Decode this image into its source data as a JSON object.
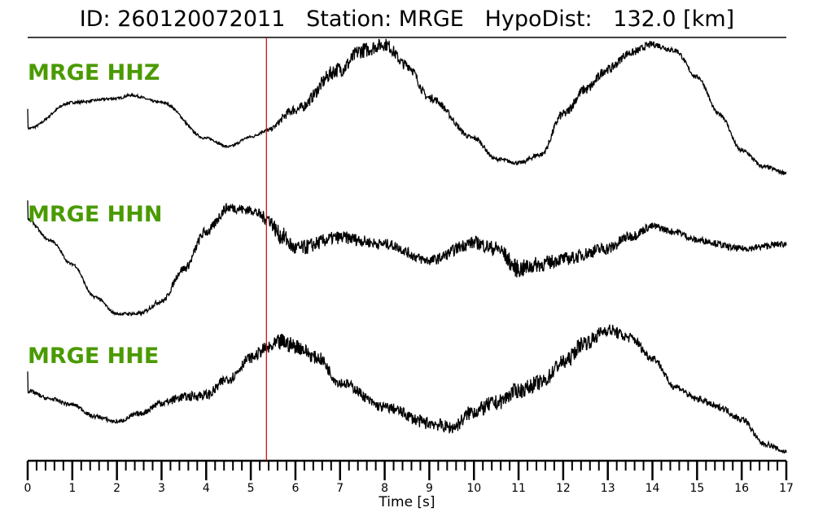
{
  "chart_data": {
    "type": "line",
    "title": "ID: 260120072011   Station: MRGE   HypoDist:   132.0 [km]",
    "xlabel": "Time [s]",
    "xlim": [
      0,
      17
    ],
    "xticks": [
      "0",
      "1",
      "2",
      "3",
      "4",
      "5",
      "6",
      "7",
      "8",
      "9",
      "10",
      "11",
      "12",
      "13",
      "14",
      "15",
      "16",
      "17"
    ],
    "minor_tick_step": 0.2,
    "grid": false,
    "marker_line": {
      "x": 5.35,
      "color": "#cc0000"
    },
    "trace_color": "#000000",
    "label_color": "#4a9a00",
    "series": [
      {
        "name": "MRGE HHZ",
        "t": [
          0,
          1,
          2,
          2.3,
          3,
          4,
          4.5,
          5,
          5.35,
          6,
          7,
          7.5,
          8,
          8.5,
          9,
          10,
          10.5,
          11,
          11.5,
          12,
          12.5,
          13,
          13.5,
          14,
          14.5,
          15,
          15.5,
          16,
          16.5,
          17
        ],
        "amp": [
          -0.31,
          0.09,
          0.15,
          0.2,
          0.09,
          -0.46,
          -0.59,
          -0.44,
          -0.34,
          -0.02,
          0.6,
          0.89,
          0.98,
          0.66,
          0.16,
          -0.46,
          -0.78,
          -0.84,
          -0.71,
          -0.09,
          0.29,
          0.6,
          0.85,
          0.98,
          0.89,
          0.48,
          -0.09,
          -0.65,
          -0.9,
          -0.99
        ],
        "noise": [
          0.02,
          0.02,
          0.02,
          0.02,
          0.02,
          0.02,
          0.02,
          0.02,
          0.03,
          0.08,
          0.12,
          0.12,
          0.1,
          0.08,
          0.06,
          0.04,
          0.03,
          0.03,
          0.04,
          0.07,
          0.08,
          0.07,
          0.06,
          0.05,
          0.04,
          0.03,
          0.03,
          0.03,
          0.03,
          0.03
        ]
      },
      {
        "name": "MRGE HHN",
        "t": [
          0,
          0.5,
          1,
          1.5,
          2,
          2.5,
          3,
          3.5,
          4,
          4.5,
          5,
          5.35,
          5.7,
          6,
          7,
          8,
          9,
          10,
          10.5,
          11,
          11.5,
          12,
          13,
          13.5,
          14,
          14.5,
          15,
          16,
          17
        ],
        "amp": [
          0.56,
          0.25,
          -0.12,
          -0.62,
          -0.88,
          -0.88,
          -0.69,
          -0.19,
          0.38,
          0.75,
          0.71,
          0.59,
          0.31,
          0.12,
          0.29,
          0.19,
          -0.06,
          0.21,
          0.12,
          -0.19,
          -0.12,
          -0.04,
          0.12,
          0.31,
          0.46,
          0.38,
          0.25,
          0.12,
          0.19
        ],
        "noise": [
          0.02,
          0.02,
          0.02,
          0.02,
          0.02,
          0.03,
          0.04,
          0.06,
          0.08,
          0.08,
          0.07,
          0.1,
          0.14,
          0.12,
          0.1,
          0.08,
          0.08,
          0.1,
          0.12,
          0.14,
          0.12,
          0.1,
          0.1,
          0.08,
          0.06,
          0.05,
          0.05,
          0.05,
          0.05
        ]
      },
      {
        "name": "MRGE HHE",
        "t": [
          0,
          0.5,
          1,
          1.5,
          2,
          2.5,
          3,
          3.5,
          4,
          4.5,
          5,
          5.35,
          5.7,
          6,
          6.5,
          7,
          8,
          9,
          9.5,
          10,
          10.5,
          11,
          11.5,
          12,
          12.5,
          13,
          13.5,
          14,
          14.5,
          15,
          15.5,
          16,
          16.5,
          17
        ],
        "amp": [
          -0.03,
          -0.15,
          -0.24,
          -0.42,
          -0.5,
          -0.38,
          -0.21,
          -0.12,
          -0.09,
          0.16,
          0.48,
          0.62,
          0.72,
          0.66,
          0.48,
          0.1,
          -0.28,
          -0.52,
          -0.59,
          -0.34,
          -0.21,
          -0.02,
          0.1,
          0.41,
          0.72,
          0.91,
          0.79,
          0.48,
          0.04,
          -0.15,
          -0.28,
          -0.46,
          -0.84,
          -0.96
        ],
        "noise": [
          0.03,
          0.03,
          0.03,
          0.03,
          0.03,
          0.04,
          0.06,
          0.07,
          0.08,
          0.08,
          0.08,
          0.1,
          0.14,
          0.12,
          0.1,
          0.08,
          0.08,
          0.1,
          0.1,
          0.12,
          0.12,
          0.12,
          0.12,
          0.12,
          0.12,
          0.1,
          0.08,
          0.06,
          0.05,
          0.05,
          0.05,
          0.05,
          0.04,
          0.04
        ]
      }
    ]
  }
}
